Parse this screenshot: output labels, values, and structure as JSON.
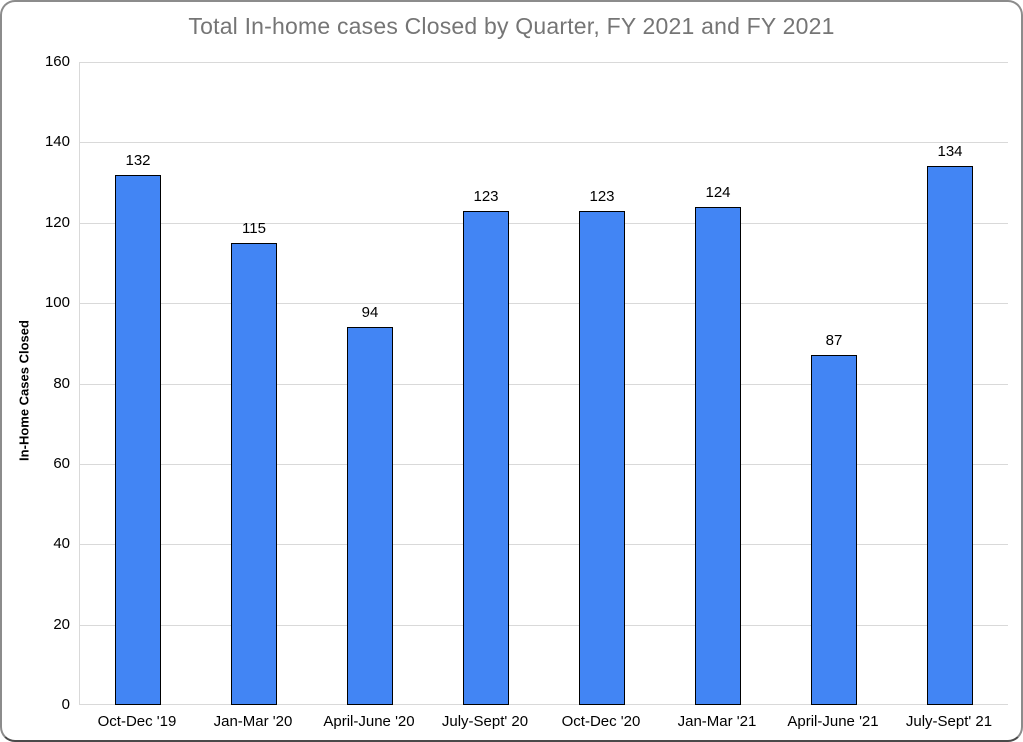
{
  "window": {
    "background": "#ffffff",
    "border_color": "#8c8c8c"
  },
  "chart_data": {
    "type": "bar",
    "title": "Total In-home cases Closed by Quarter, FY 2021 and FY 2021",
    "title_color": "#757575",
    "categories": [
      "Oct-Dec '19",
      "Jan-Mar '20",
      "April-June '20",
      "July-Sept' 20",
      "Oct-Dec '20",
      "Jan-Mar '21",
      "April-June '21",
      "July-Sept' 21"
    ],
    "values": [
      132,
      115,
      94,
      123,
      123,
      124,
      87,
      134
    ],
    "xlabel": "",
    "ylabel": "In-Home Cases Closed",
    "ylim": [
      0,
      160
    ],
    "yticks": [
      0,
      20,
      40,
      60,
      80,
      100,
      120,
      140,
      160
    ],
    "grid": true,
    "legend_position": "none",
    "bar_fill_color": "#4285F4",
    "bar_border_color": "#000000",
    "gridline_color": "#d9d9d9",
    "axis_text_color": "#000000",
    "value_labels_shown": true
  }
}
